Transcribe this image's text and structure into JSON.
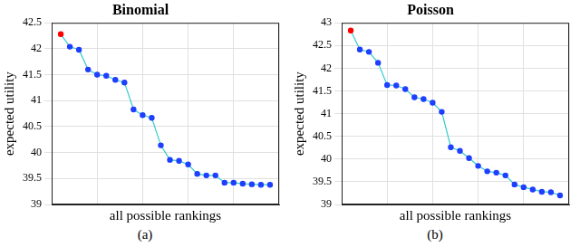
{
  "chart_data": [
    {
      "type": "line",
      "title": "Binomial",
      "xlabel": "all possible rankings",
      "ylabel": "expected utility",
      "caption": "(a)",
      "x": [
        1,
        2,
        3,
        4,
        5,
        6,
        7,
        8,
        9,
        10,
        11,
        12,
        13,
        14,
        15,
        16,
        17,
        18,
        19,
        20,
        21,
        22,
        23,
        24
      ],
      "series": [
        {
          "name": "Binomial",
          "color": "#33cccc",
          "marker": "circle",
          "colors": [
            "#ff0000",
            "#1f3fff",
            "#1f3fff",
            "#1f3fff",
            "#1f3fff",
            "#1f3fff",
            "#1f3fff",
            "#1f3fff",
            "#1f3fff",
            "#1f3fff",
            "#1f3fff",
            "#1f3fff",
            "#1f3fff",
            "#1f3fff",
            "#1f3fff",
            "#1f3fff",
            "#1f3fff",
            "#1f3fff",
            "#1f3fff",
            "#1f3fff",
            "#1f3fff",
            "#1f3fff",
            "#1f3fff",
            "#1f3fff"
          ],
          "values": [
            42.28,
            42.04,
            41.98,
            41.6,
            41.5,
            41.48,
            41.4,
            41.35,
            40.83,
            40.72,
            40.67,
            40.14,
            39.86,
            39.84,
            39.77,
            39.59,
            39.56,
            39.56,
            39.42,
            39.42,
            39.4,
            39.39,
            39.38,
            39.38
          ]
        }
      ],
      "xlim": [
        0,
        25
      ],
      "xticks": [
        0,
        5,
        10,
        15,
        20,
        25
      ],
      "ylim": [
        39,
        42.5
      ],
      "yticks": [
        39,
        39.5,
        40,
        40.5,
        41,
        41.5,
        42,
        42.5
      ],
      "grid": true,
      "tick_labels": "y"
    },
    {
      "type": "line",
      "title": "Poisson",
      "xlabel": "all possible rankings",
      "ylabel": "expected utility",
      "caption": "(b)",
      "x": [
        1,
        2,
        3,
        4,
        5,
        6,
        7,
        8,
        9,
        10,
        11,
        12,
        13,
        14,
        15,
        16,
        17,
        18,
        19,
        20,
        21,
        22,
        23,
        24
      ],
      "series": [
        {
          "name": "Poisson",
          "color": "#33cccc",
          "marker": "circle",
          "colors": [
            "#ff0000",
            "#1f3fff",
            "#1f3fff",
            "#1f3fff",
            "#1f3fff",
            "#1f3fff",
            "#1f3fff",
            "#1f3fff",
            "#1f3fff",
            "#1f3fff",
            "#1f3fff",
            "#1f3fff",
            "#1f3fff",
            "#1f3fff",
            "#1f3fff",
            "#1f3fff",
            "#1f3fff",
            "#1f3fff",
            "#1f3fff",
            "#1f3fff",
            "#1f3fff",
            "#1f3fff",
            "#1f3fff",
            "#1f3fff"
          ],
          "values": [
            42.83,
            42.41,
            42.36,
            42.12,
            41.63,
            41.62,
            41.54,
            41.36,
            41.32,
            41.24,
            41.04,
            40.26,
            40.18,
            40.02,
            39.85,
            39.73,
            39.7,
            39.64,
            39.44,
            39.38,
            39.33,
            39.28,
            39.27,
            39.2
          ]
        }
      ],
      "xlim": [
        0,
        25
      ],
      "xticks": [
        0,
        5,
        10,
        15,
        20,
        25
      ],
      "ylim": [
        39,
        43
      ],
      "yticks": [
        39,
        39.5,
        40,
        40.5,
        41,
        41.5,
        42,
        42.5,
        43
      ],
      "grid": true,
      "tick_labels": "y"
    }
  ]
}
